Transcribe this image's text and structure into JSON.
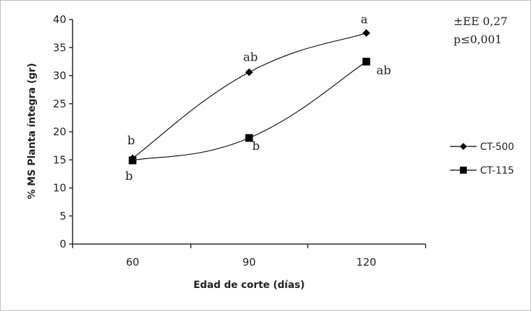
{
  "chart_data": {
    "type": "line",
    "xlabel": "Edad de corte (días)",
    "ylabel": "% MS Planta íntegra (gr)",
    "categories": [
      "60",
      "90",
      "120"
    ],
    "y_ticks": [
      "0",
      "5",
      "10",
      "15",
      "20",
      "25",
      "30",
      "35",
      "40"
    ],
    "ylim": [
      0,
      40
    ],
    "grid": false,
    "legend_position": "right",
    "series": [
      {
        "name": "CT-500",
        "marker": "diamond",
        "color": "#000000",
        "values": [
          15.3,
          30.6,
          37.6
        ],
        "significance": [
          "b",
          "ab",
          "a"
        ]
      },
      {
        "name": "CT-115",
        "marker": "square",
        "color": "#000000",
        "values": [
          14.9,
          18.9,
          32.5
        ],
        "significance": [
          "b",
          "b",
          "ab"
        ]
      }
    ],
    "annotations": [
      "±EE 0,27",
      "p≤0,001"
    ]
  }
}
